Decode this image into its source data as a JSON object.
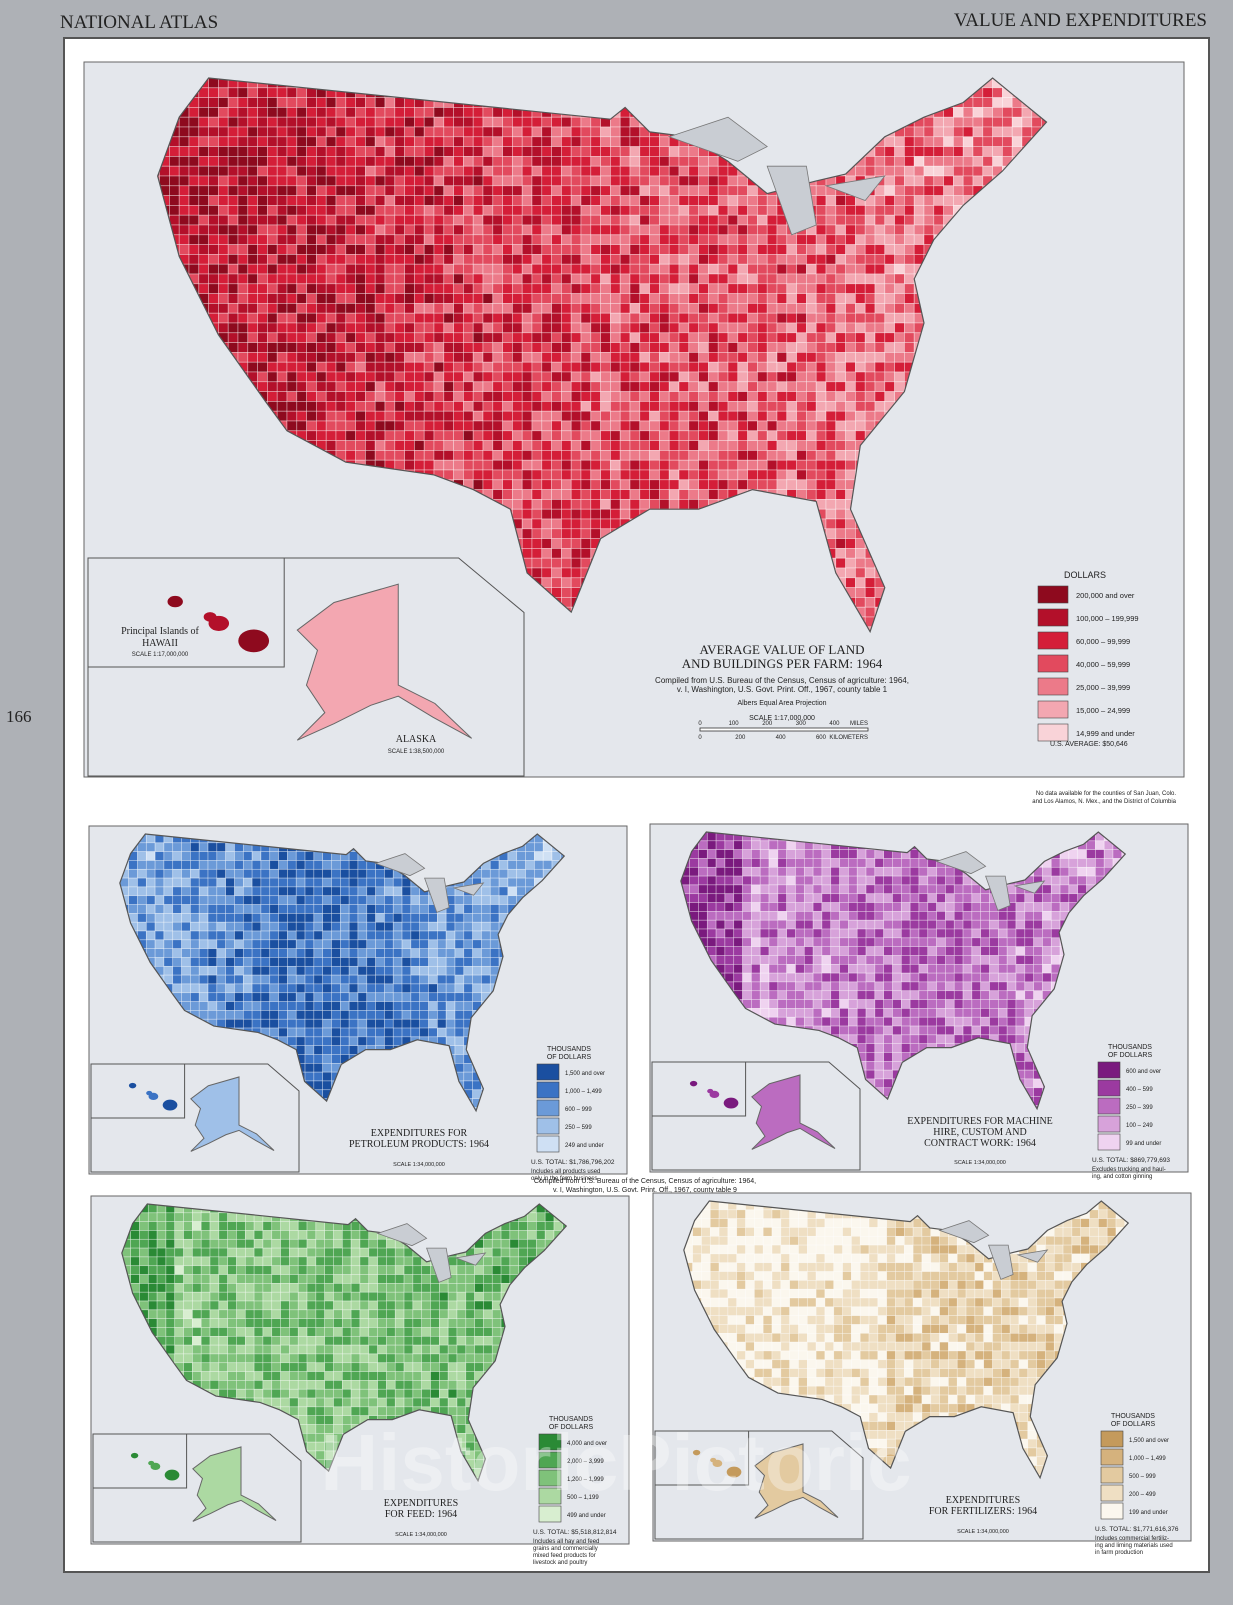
{
  "header": {
    "left": "NATIONAL ATLAS",
    "right": "VALUE AND EXPENDITURES",
    "page_number": "166"
  },
  "main_map": {
    "title_lines": [
      "AVERAGE VALUE OF LAND",
      "AND BUILDINGS PER FARM: 1964"
    ],
    "source_lines": [
      "Compiled from U.S. Bureau of the Census, Census of agriculture: 1964,",
      "v. I, Washington, U.S. Govt. Print. Off., 1967, county table 1"
    ],
    "projection": "Albers Equal Area Projection",
    "scale": "SCALE 1:17,000,000",
    "scale_bar": {
      "miles": [
        "0",
        "100",
        "200",
        "300",
        "400"
      ],
      "miles_unit": "MILES",
      "km": [
        "0",
        "200",
        "400",
        "600"
      ],
      "km_unit": "KILOMETERS"
    },
    "legend": {
      "title": "DOLLARS",
      "items": [
        {
          "label": "200,000 and over",
          "color": "#8e0a1e"
        },
        {
          "label": "100,000 – 199,999",
          "color": "#b3102a"
        },
        {
          "label": "60,000 – 99,999",
          "color": "#d41e38"
        },
        {
          "label": "40,000 – 59,999",
          "color": "#e24a5e"
        },
        {
          "label": "25,000 – 39,999",
          "color": "#ec7a89"
        },
        {
          "label": "15,000 – 24,999",
          "color": "#f3a7b1"
        },
        {
          "label": "14,999 and under",
          "color": "#f9d3d8"
        }
      ]
    },
    "average": "U.S. AVERAGE: $50,646",
    "insets": {
      "hawaii": {
        "label_lines": [
          "Principal Islands of",
          "HAWAII"
        ],
        "scale": "SCALE 1:17,000,000"
      },
      "alaska": {
        "label": "ALASKA",
        "scale": "SCALE 1:38,500,000"
      }
    }
  },
  "note_lines": [
    "No data available for the counties of San Juan, Colo.",
    "and Los Alamos, N. Mex., and the District of Columbia"
  ],
  "middle_source_lines": [
    "Compiled from U.S. Bureau of the Census, Census of agriculture: 1964,",
    "v. I, Washington, U.S. Govt. Print. Off., 1967, county table 9"
  ],
  "small_maps": [
    {
      "title_lines": [
        "EXPENDITURES FOR",
        "PETROLEUM PRODUCTS: 1964"
      ],
      "scale": "SCALE 1:34,000,000",
      "legend": {
        "title_lines": [
          "THOUSANDS",
          "OF DOLLARS"
        ],
        "items": [
          {
            "label": "1,500 and over",
            "color": "#1a4fa0"
          },
          {
            "label": "1,000 – 1,499",
            "color": "#3b73c4"
          },
          {
            "label": "600 – 999",
            "color": "#6b9ad8"
          },
          {
            "label": "250 – 599",
            "color": "#9fc0e8"
          },
          {
            "label": "249 and under",
            "color": "#cfe0f4"
          }
        ]
      },
      "total": "U.S. TOTAL: $1,786,796,202",
      "footnote_lines": [
        "Includes all products used",
        "only in the farm business"
      ]
    },
    {
      "title_lines": [
        "EXPENDITURES FOR MACHINE",
        "HIRE, CUSTOM AND",
        "CONTRACT WORK: 1964"
      ],
      "scale": "SCALE 1:34,000,000",
      "legend": {
        "title_lines": [
          "THOUSANDS",
          "OF DOLLARS"
        ],
        "items": [
          {
            "label": "600 and over",
            "color": "#7a1a7e"
          },
          {
            "label": "400 – 599",
            "color": "#9b3aa0"
          },
          {
            "label": "250 – 399",
            "color": "#bb6cc0"
          },
          {
            "label": "100 – 249",
            "color": "#d7a2da"
          },
          {
            "label": "99 and under",
            "color": "#efd3f0"
          }
        ]
      },
      "total": "U.S. TOTAL: $869,779,693",
      "footnote_lines": [
        "Excludes trucking and haul-",
        "ing, and cotton ginning"
      ]
    },
    {
      "title_lines": [
        "EXPENDITURES",
        "FOR FEED: 1964"
      ],
      "scale": "SCALE 1:34,000,000",
      "legend": {
        "title_lines": [
          "THOUSANDS",
          "OF DOLLARS"
        ],
        "items": [
          {
            "label": "4,000 and over",
            "color": "#2a8a35"
          },
          {
            "label": "2,000 – 3,999",
            "color": "#4fa653"
          },
          {
            "label": "1,200 – 1,999",
            "color": "#7fc27a"
          },
          {
            "label": "500 – 1,199",
            "color": "#acd9a2"
          },
          {
            "label": "499 and under",
            "color": "#d8eed0"
          }
        ]
      },
      "total": "U.S. TOTAL: $5,518,812,814",
      "footnote_lines": [
        "Includes all hay and feed",
        "grains and commercially",
        "mixed feed products for",
        "livestock and poultry"
      ]
    },
    {
      "title_lines": [
        "EXPENDITURES",
        "FOR FERTILIZERS: 1964"
      ],
      "scale": "SCALE 1:34,000,000",
      "legend": {
        "title_lines": [
          "THOUSANDS",
          "OF DOLLARS"
        ],
        "items": [
          {
            "label": "1,500 and over",
            "color": "#c49a5c"
          },
          {
            "label": "1,000 – 1,499",
            "color": "#d5b27d"
          },
          {
            "label": "500 – 999",
            "color": "#e3caa0"
          },
          {
            "label": "200 – 499",
            "color": "#efdfc3"
          },
          {
            "label": "199 and under",
            "color": "#fbf7ee"
          }
        ]
      },
      "total": "U.S. TOTAL: $1,771,616,376",
      "footnote_lines": [
        "Includes commercial fertiliz-",
        "ing and liming materials used",
        "in farm production"
      ]
    }
  ],
  "watermark": "HistoricPictoric"
}
